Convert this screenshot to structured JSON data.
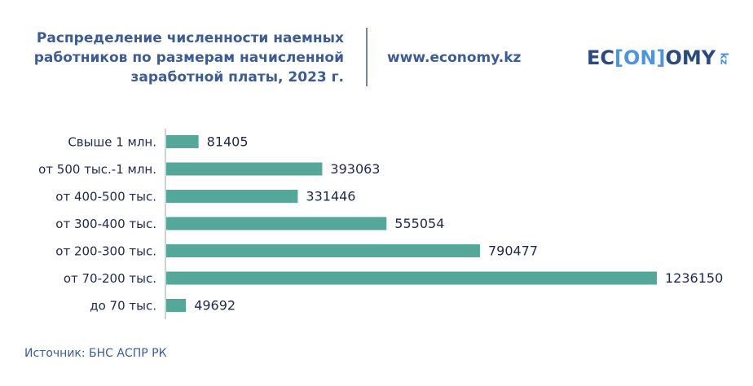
{
  "chart_data": {
    "type": "hbar",
    "title": [
      "Распределение численности наемных",
      "работников по размерам начисленной",
      "заработной платы, 2023 г."
    ],
    "site": "www.economy.kz",
    "logo": {
      "parts": [
        "EC",
        "[ON]",
        "OMY"
      ],
      "suffix": "kz"
    },
    "source": "Источник: БНС АСПР РК",
    "categories": [
      "Свыше 1 млн.",
      "от 500 тыс.-1 млн.",
      "от 400-500 тыс.",
      "от 300-400 тыс.",
      "от 200-300 тыс.",
      "от 70-200 тыс.",
      "до 70 тыс."
    ],
    "values": [
      81405,
      393063,
      331446,
      555054,
      790477,
      1236150,
      49692
    ],
    "color": "#55a899"
  }
}
